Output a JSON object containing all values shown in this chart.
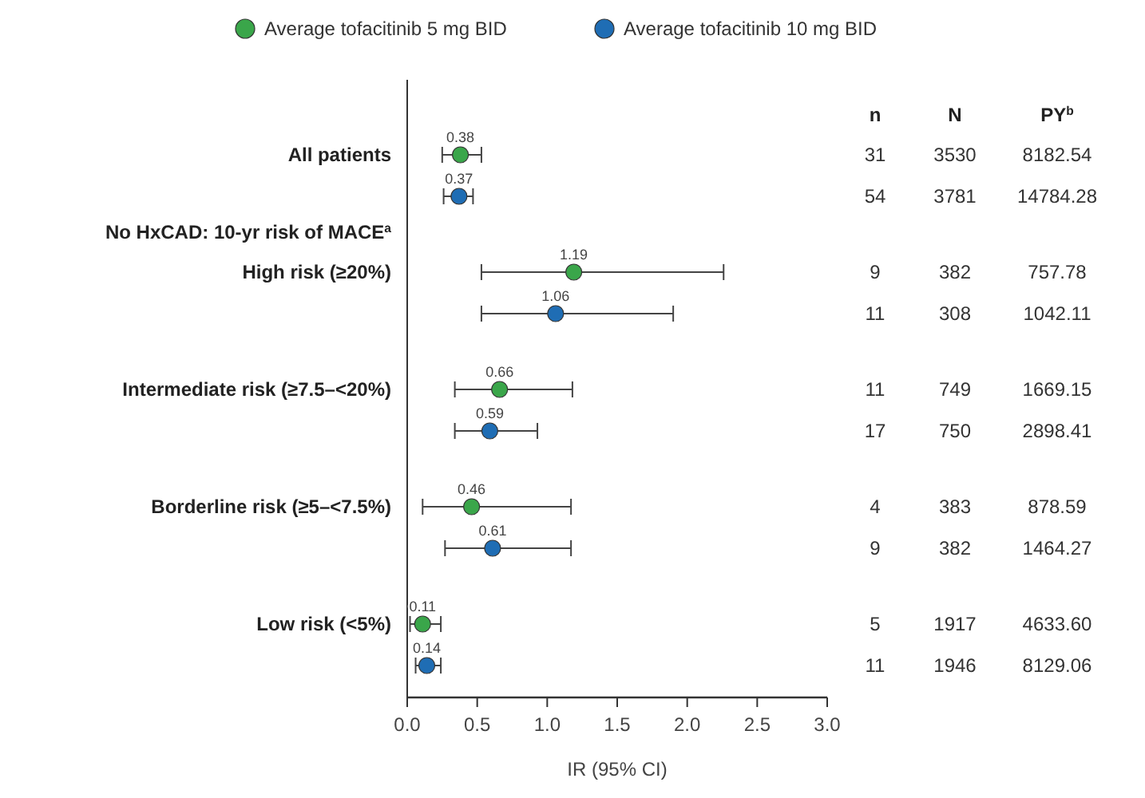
{
  "chart_data": {
    "type": "scatter",
    "orientation": "horizontal",
    "xlabel": "IR (95% CI)",
    "categories": [
      "All patients",
      "High risk (≥20%)",
      "Intermediate risk (≥7.5–<20%)",
      "Borderline risk (≥5–<7.5%)",
      "Low risk (<5%)"
    ],
    "series": [
      {
        "name": "Average tofacitinib 5 mg BID",
        "color": "#3aa64a",
        "values": [
          0.38,
          1.19,
          0.66,
          0.46,
          0.11
        ],
        "errors": [
          [
            0.25,
            0.53
          ],
          [
            0.53,
            2.26
          ],
          [
            0.34,
            1.18
          ],
          [
            0.11,
            1.17
          ],
          [
            0.02,
            0.24
          ]
        ]
      },
      {
        "name": "Average tofacitinib 10 mg BID",
        "color": "#1f6db4",
        "values": [
          0.37,
          1.06,
          0.59,
          0.61,
          0.14
        ],
        "errors": [
          [
            0.26,
            0.47
          ],
          [
            0.53,
            1.9
          ],
          [
            0.34,
            0.93
          ],
          [
            0.27,
            1.17
          ],
          [
            0.06,
            0.24
          ]
        ]
      }
    ],
    "xlim": [
      0,
      3
    ],
    "xticks": [
      {
        "value": 0,
        "label": "0.0"
      },
      {
        "value": 0.5,
        "label": "0.5"
      },
      {
        "value": 1,
        "label": "1.0"
      },
      {
        "value": 1.5,
        "label": "1.5"
      },
      {
        "value": 2,
        "label": "2.0"
      },
      {
        "value": 2.5,
        "label": "2.5"
      },
      {
        "value": 3,
        "label": "3.0"
      }
    ],
    "data_labels": true,
    "marker": "circle",
    "grid": false,
    "legend": "top",
    "annotations": [
      "No HxCAD: 10-yr risk of MACE$^{a}$",
      "n",
      "N",
      "PY$^{b}$",
      "31",
      "3530",
      "8182.54",
      "54",
      "3781",
      "14784.28",
      "9",
      "382",
      "757.78",
      "11",
      "308",
      "1042.11",
      "11",
      "749",
      "1669.15",
      "17",
      "750",
      "2898.41",
      "4",
      "383",
      "878.59",
      "9",
      "382",
      "1464.27",
      "5",
      "1917",
      "4633.60",
      "11",
      "1946",
      "8129.06"
    ]
  }
}
